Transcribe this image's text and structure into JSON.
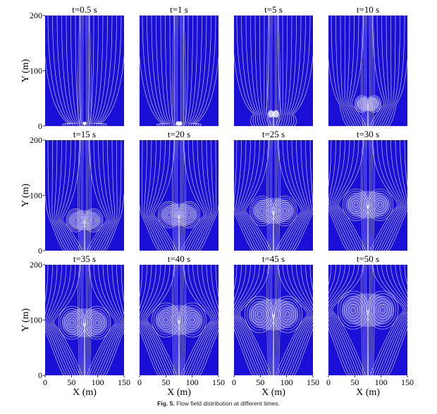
{
  "figure": {
    "caption_label": "Fig. 5.",
    "caption_text": "Flow field distribution at different times.",
    "x_label": "X (m)",
    "y_label": "Y (m)",
    "x_ticks": [
      "0",
      "50",
      "100",
      "150"
    ],
    "y_ticks": [
      "0",
      "100",
      "200"
    ],
    "colors": {
      "background": "#1a0fd6",
      "streamline": "#ffffff"
    },
    "panels": [
      {
        "title": "t=0.5 s",
        "vortex": {
          "x": 75,
          "y": 5,
          "r": 3
        }
      },
      {
        "title": "t=1 s",
        "vortex": {
          "x": 75,
          "y": 5,
          "r": 5
        }
      },
      {
        "title": "t=5 s",
        "vortex": {
          "x": 75,
          "y": 22,
          "r": 10
        }
      },
      {
        "title": "t=10 s",
        "vortex": {
          "x": 75,
          "y": 40,
          "r": 25
        }
      },
      {
        "title": "t=15 s",
        "vortex": {
          "x": 75,
          "y": 55,
          "r": 35
        }
      },
      {
        "title": "t=20 s",
        "vortex": {
          "x": 75,
          "y": 65,
          "r": 40
        }
      },
      {
        "title": "t=25 s",
        "vortex": {
          "x": 75,
          "y": 72,
          "r": 45
        }
      },
      {
        "title": "t=30 s",
        "vortex": {
          "x": 75,
          "y": 83,
          "r": 48
        }
      },
      {
        "title": "t=35 s",
        "vortex": {
          "x": 75,
          "y": 95,
          "r": 50
        }
      },
      {
        "title": "t=40 s",
        "vortex": {
          "x": 75,
          "y": 100,
          "r": 52
        }
      },
      {
        "title": "t=45 s",
        "vortex": {
          "x": 75,
          "y": 110,
          "r": 55
        }
      },
      {
        "title": "t=50 s",
        "vortex": {
          "x": 75,
          "y": 118,
          "r": 58
        }
      }
    ]
  }
}
